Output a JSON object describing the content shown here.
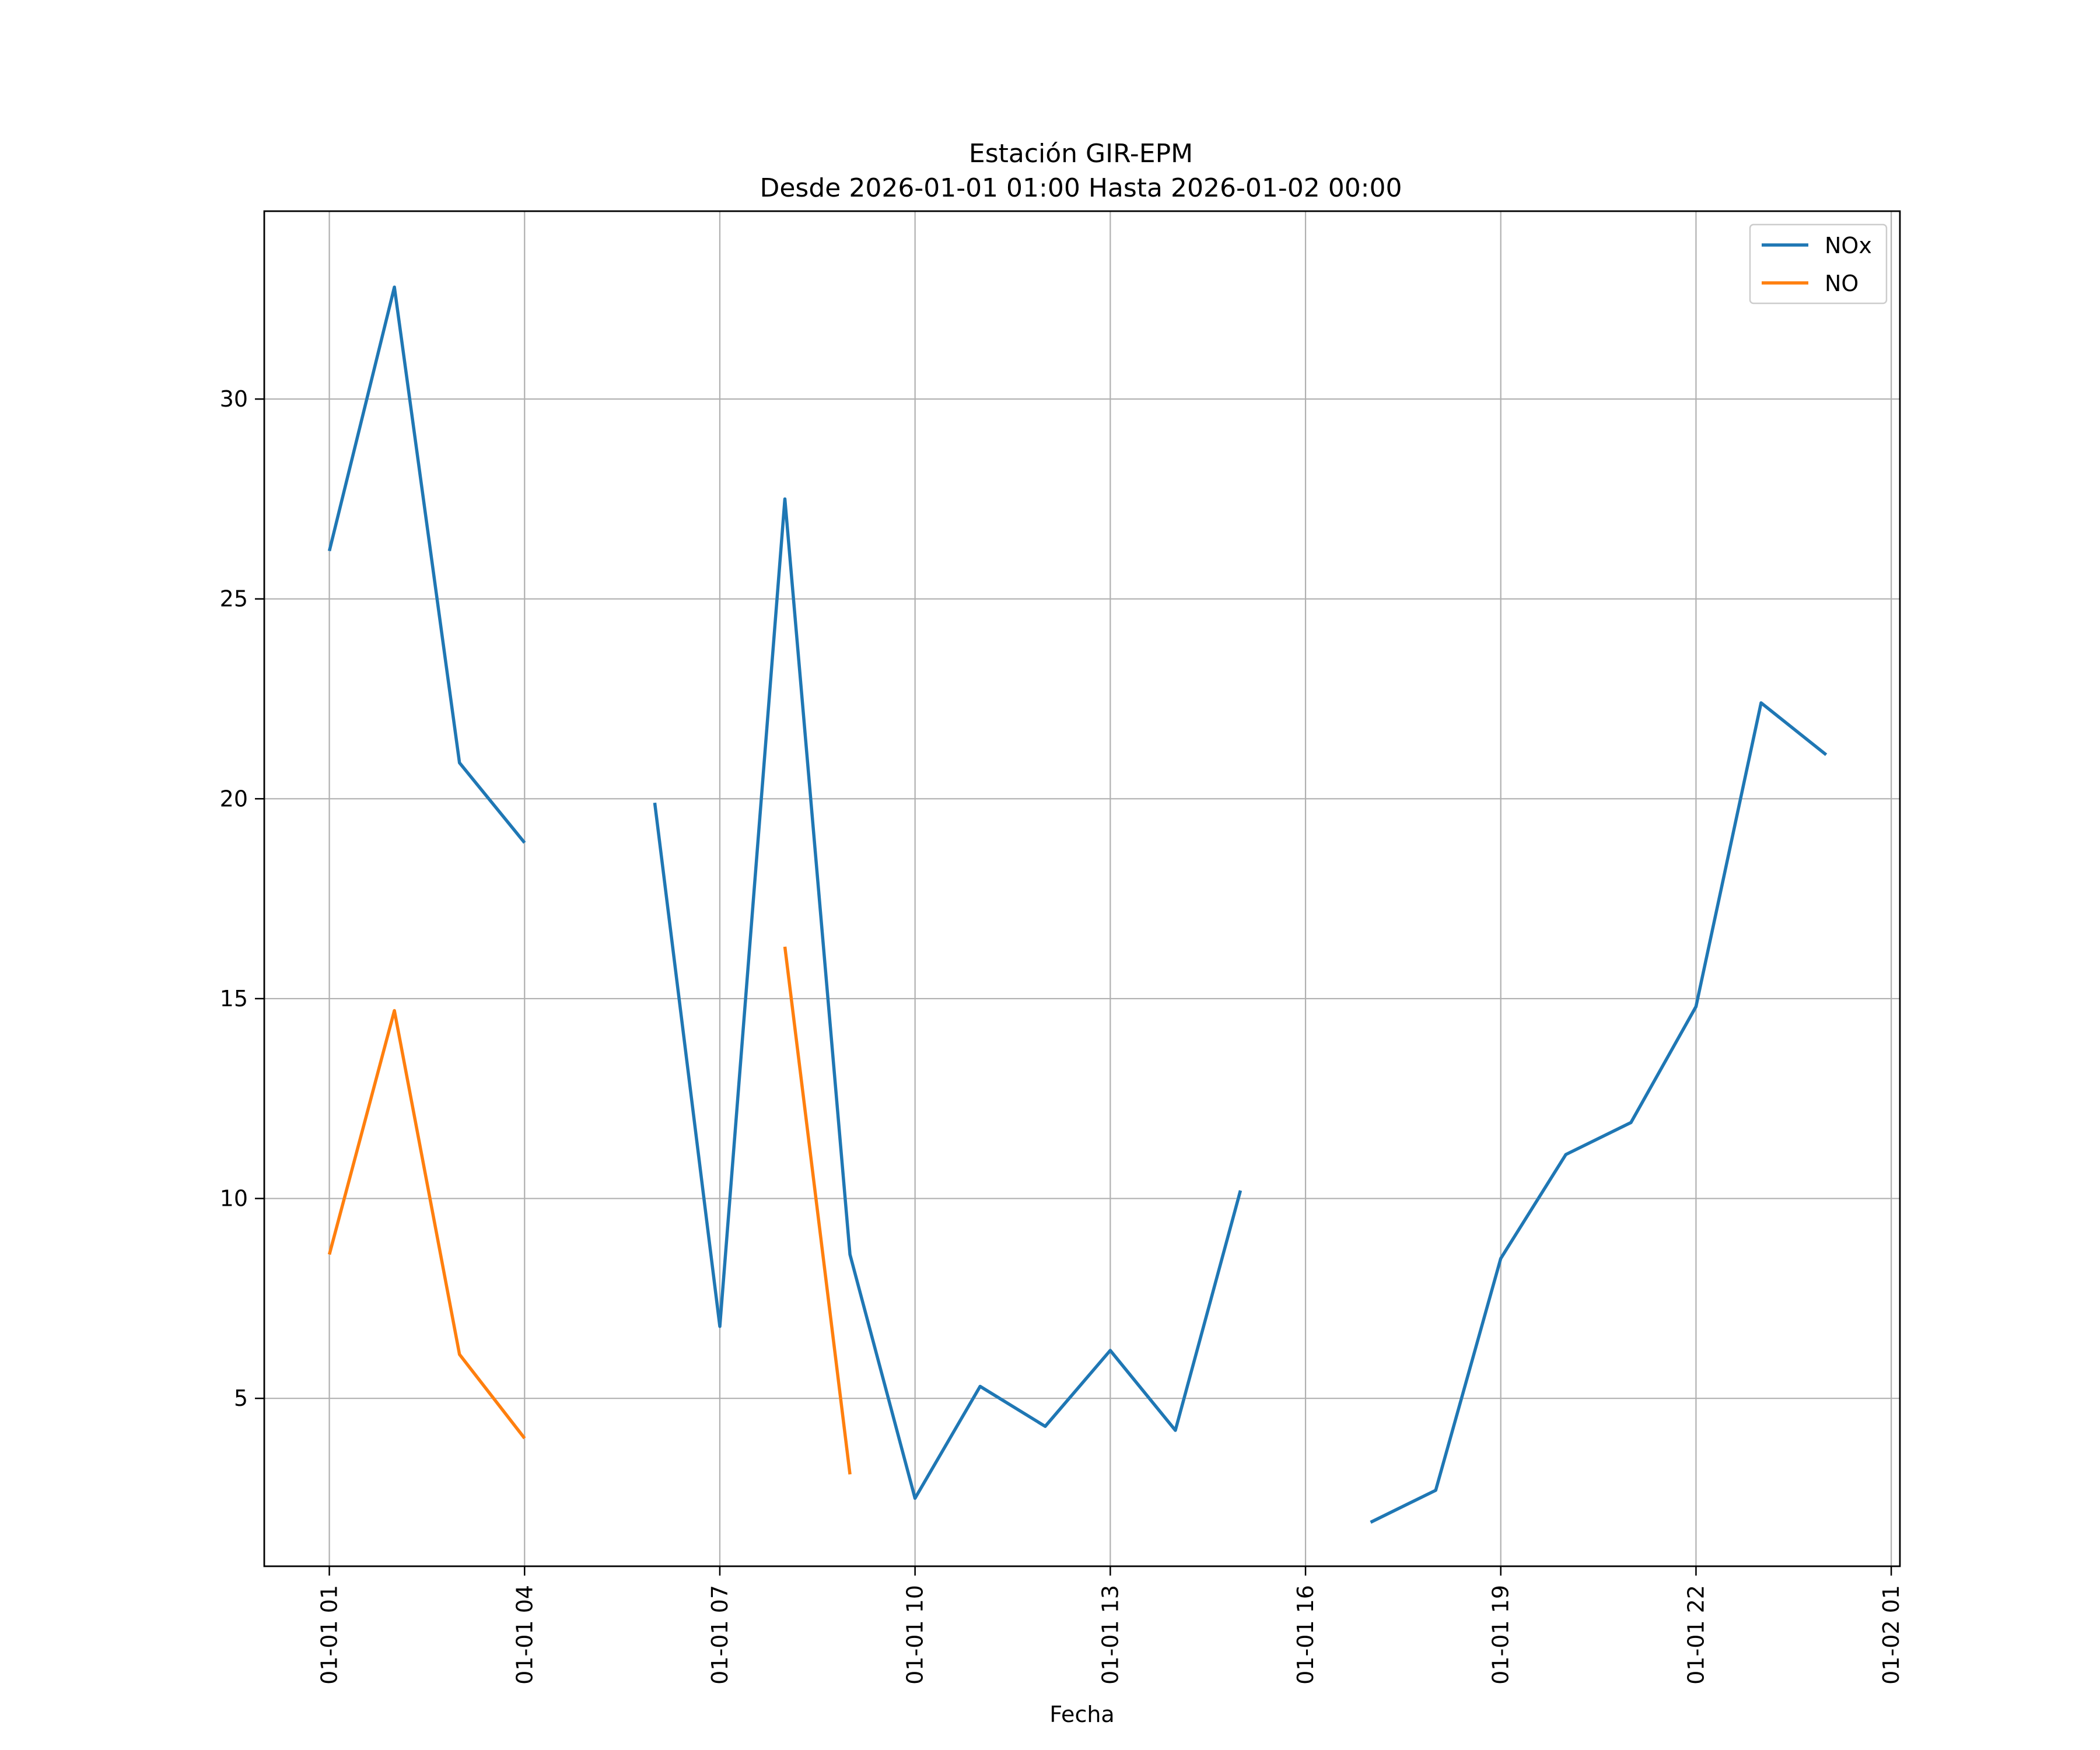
{
  "chart_data": {
    "type": "line",
    "title": "Estación GIR-EPM",
    "subtitle": "Desde 2026-01-01 01:00 Hasta 2026-01-02 00:00",
    "xlabel": "Fecha",
    "ylabel": "",
    "x_type": "datetime",
    "xlim": [
      "2026-01-01 00:00",
      "2026-01-02 01:08"
    ],
    "ylim": [
      0.8,
      34.7
    ],
    "x_ticks": [
      "2026-01-01 01:00",
      "2026-01-01 04:00",
      "2026-01-01 07:00",
      "2026-01-01 10:00",
      "2026-01-01 13:00",
      "2026-01-01 16:00",
      "2026-01-01 19:00",
      "2026-01-01 22:00",
      "2026-01-02 01:00"
    ],
    "x_tick_labels": [
      "01-01 01",
      "01-01 04",
      "01-01 07",
      "01-01 10",
      "01-01 13",
      "01-01 16",
      "01-01 19",
      "01-01 22",
      "01-02 01"
    ],
    "y_ticks": [
      5,
      10,
      15,
      20,
      25,
      30
    ],
    "y_tick_labels": [
      "5",
      "10",
      "15",
      "20",
      "25",
      "30"
    ],
    "grid": true,
    "legend_position": "top-right",
    "x": [
      "2026-01-01 01:00",
      "2026-01-01 02:00",
      "2026-01-01 03:00",
      "2026-01-01 04:00",
      "2026-01-01 05:00",
      "2026-01-01 06:00",
      "2026-01-01 07:00",
      "2026-01-01 08:00",
      "2026-01-01 09:00",
      "2026-01-01 10:00",
      "2026-01-01 11:00",
      "2026-01-01 12:00",
      "2026-01-01 13:00",
      "2026-01-01 14:00",
      "2026-01-01 15:00",
      "2026-01-01 16:00",
      "2026-01-01 17:00",
      "2026-01-01 18:00",
      "2026-01-01 19:00",
      "2026-01-01 20:00",
      "2026-01-01 21:00",
      "2026-01-01 22:00",
      "2026-01-01 23:00",
      "2026-01-02 00:00"
    ],
    "series": [
      {
        "name": "NOx",
        "color": "#1f77b4",
        "values": [
          26.2,
          32.8,
          20.9,
          18.9,
          null,
          19.9,
          6.8,
          27.5,
          8.6,
          2.5,
          5.3,
          4.3,
          6.2,
          4.2,
          10.2,
          null,
          1.9,
          2.7,
          8.5,
          11.1,
          11.9,
          14.8,
          22.4,
          21.1
        ]
      },
      {
        "name": "NO",
        "color": "#ff7f0e",
        "values": [
          8.6,
          14.7,
          6.1,
          4.0,
          null,
          null,
          null,
          16.3,
          3.1,
          null,
          null,
          null,
          null,
          null,
          null,
          null,
          null,
          null,
          null,
          null,
          null,
          null,
          null,
          null
        ]
      }
    ]
  }
}
